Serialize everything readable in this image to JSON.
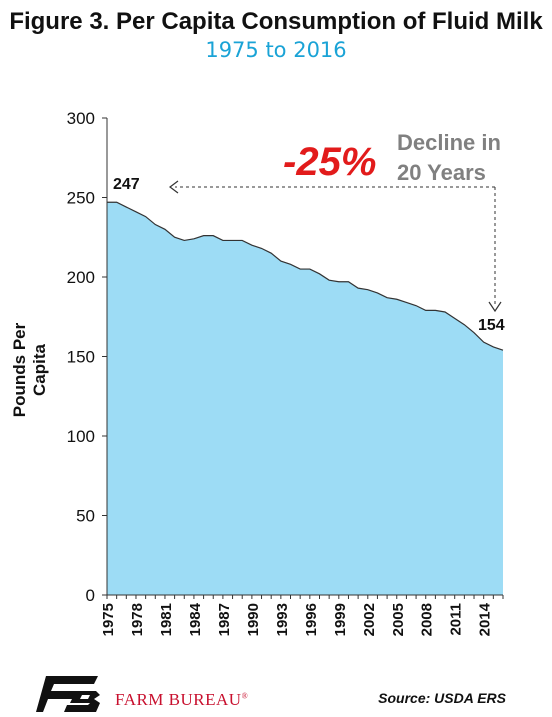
{
  "header": {
    "title": "Figure 3. Per Capita Consumption of Fluid Milk",
    "subtitle": "1975 to 2016"
  },
  "chart_data": {
    "type": "area",
    "title": "Figure 3. Per Capita Consumption of Fluid Milk",
    "subtitle": "1975 to 2016",
    "xlabel": "",
    "ylabel": "Pounds Per Capita",
    "ylim": [
      0,
      300
    ],
    "yticks": [
      0,
      50,
      100,
      150,
      200,
      250,
      300
    ],
    "xtick_labels": [
      "1975",
      "1978",
      "1981",
      "1984",
      "1987",
      "1990",
      "1993",
      "1996",
      "1999",
      "2002",
      "2005",
      "2008",
      "2011",
      "2014"
    ],
    "grid": false,
    "x": [
      1975,
      1976,
      1977,
      1978,
      1979,
      1980,
      1981,
      1982,
      1983,
      1984,
      1985,
      1986,
      1987,
      1988,
      1989,
      1990,
      1991,
      1992,
      1993,
      1994,
      1995,
      1996,
      1997,
      1998,
      1999,
      2000,
      2001,
      2002,
      2003,
      2004,
      2005,
      2006,
      2007,
      2008,
      2009,
      2010,
      2011,
      2012,
      2013,
      2014,
      2015,
      2016
    ],
    "values": [
      247,
      247,
      244,
      241,
      238,
      233,
      230,
      225,
      223,
      224,
      226,
      226,
      223,
      223,
      223,
      220,
      218,
      215,
      210,
      208,
      205,
      205,
      202,
      198,
      197,
      197,
      193,
      192,
      190,
      187,
      186,
      184,
      182,
      179,
      179,
      178,
      174,
      170,
      165,
      159,
      156,
      154
    ],
    "fill_color": "#9ddcf5",
    "line_color": "#333333",
    "annotations": {
      "start_label": "247",
      "end_label": "154",
      "percent": "-25%",
      "decline_line1": "Decline in",
      "decline_line2": "20 Years"
    }
  },
  "footer": {
    "brand": "FARM BUREAU",
    "registered_mark": "®",
    "logo_letters": "FB",
    "source": "Source: USDA ERS"
  },
  "colors": {
    "title": "#111111",
    "subtitle": "#1aa3d6",
    "area": "#9ddcf5",
    "percent": "#e21b1b",
    "annotation_gray": "#808080",
    "brand": "#c8102e"
  }
}
